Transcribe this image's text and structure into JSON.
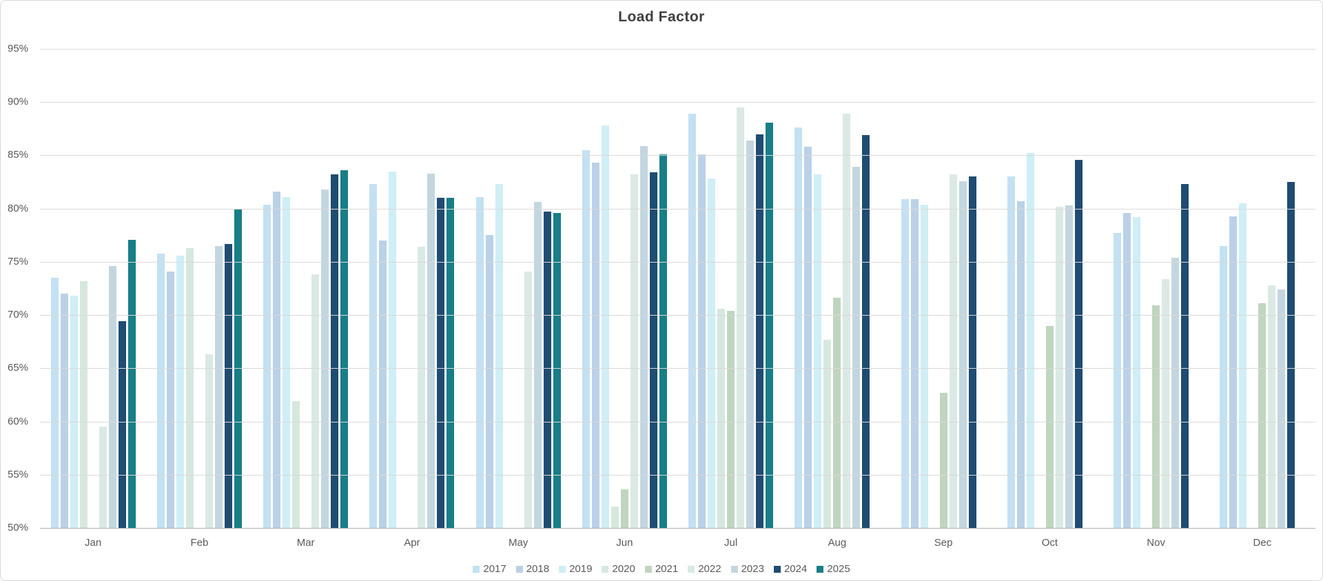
{
  "title": "Load Factor",
  "colors": {
    "gridline": "#d9d9d9",
    "axis_line": "#adadad",
    "axis_text": "#595959",
    "title_text": "#404040"
  },
  "chart_data": {
    "type": "bar",
    "title": "Load Factor",
    "xlabel": "",
    "ylabel": "",
    "ylim": [
      50,
      95
    ],
    "ytick_step": 5,
    "ytick_labels_top_to_bottom": [
      "95%",
      "90%",
      "85%",
      "80%",
      "75%",
      "70%",
      "65%",
      "60%",
      "55%",
      "50%"
    ],
    "grid": true,
    "legend_position": "bottom",
    "categories": [
      "Jan",
      "Feb",
      "Mar",
      "Apr",
      "May",
      "Jun",
      "Jul",
      "Aug",
      "Sep",
      "Oct",
      "Nov",
      "Dec"
    ],
    "series": [
      {
        "name": "2017",
        "color": "#c3e1f2",
        "values": [
          73.5,
          75.8,
          80.4,
          82.3,
          81.1,
          85.5,
          88.9,
          87.6,
          80.9,
          83.0,
          77.7,
          76.5
        ]
      },
      {
        "name": "2018",
        "color": "#bad1e7",
        "values": [
          72.0,
          74.1,
          81.6,
          77.0,
          77.5,
          84.3,
          85.1,
          85.8,
          80.9,
          80.7,
          79.6,
          79.3
        ]
      },
      {
        "name": "2019",
        "color": "#cfeef6",
        "values": [
          71.8,
          75.6,
          81.1,
          83.5,
          82.3,
          87.8,
          82.8,
          83.2,
          80.4,
          85.2,
          79.2,
          80.5
        ]
      },
      {
        "name": "2020",
        "color": "#d6e8de",
        "values": [
          73.2,
          76.3,
          61.9,
          null,
          null,
          52.0,
          70.6,
          67.7,
          null,
          null,
          null,
          null
        ]
      },
      {
        "name": "2021",
        "color": "#c0d5c0",
        "values": [
          null,
          null,
          null,
          null,
          null,
          53.6,
          70.4,
          71.6,
          62.7,
          69.0,
          70.9,
          71.1
        ]
      },
      {
        "name": "2022",
        "color": "#dbe9e4",
        "values": [
          59.5,
          66.3,
          73.8,
          76.4,
          74.1,
          83.2,
          89.5,
          88.9,
          83.2,
          80.2,
          73.4,
          72.8
        ]
      },
      {
        "name": "2023",
        "color": "#c3d6e0",
        "values": [
          74.6,
          76.5,
          81.8,
          83.3,
          80.6,
          85.9,
          86.4,
          83.9,
          82.6,
          80.3,
          75.4,
          72.4
        ]
      },
      {
        "name": "2024",
        "color": "#1f4c72",
        "values": [
          69.4,
          76.7,
          83.2,
          81.0,
          79.7,
          83.4,
          87.0,
          86.9,
          83.0,
          84.6,
          82.3,
          82.5
        ]
      },
      {
        "name": "2025",
        "color": "#187e87",
        "values": [
          77.1,
          80.0,
          83.6,
          81.0,
          79.6,
          85.1,
          88.1,
          null,
          null,
          null,
          null,
          null
        ]
      }
    ]
  }
}
